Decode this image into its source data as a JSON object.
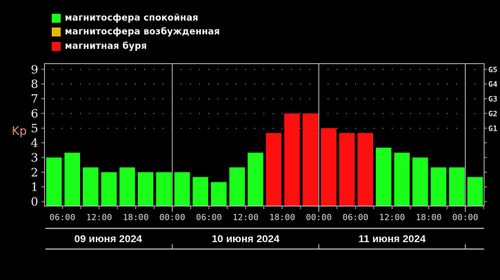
{
  "legend": [
    {
      "label": "магнитосфера спокойная",
      "color": "#1aff1a"
    },
    {
      "label": "магнитосфера возбужденная",
      "color": "#e6b800"
    },
    {
      "label": "магнитная буря",
      "color": "#ff1010"
    }
  ],
  "axis": {
    "y_label": "Kp",
    "y_ticks": [
      "0",
      "1",
      "2",
      "3",
      "4",
      "5",
      "6",
      "7",
      "8",
      "9"
    ],
    "g_ticks": [
      {
        "label": "G1",
        "level": 5
      },
      {
        "label": "G2",
        "level": 6
      },
      {
        "label": "G3",
        "level": 7
      },
      {
        "label": "G4",
        "level": 8
      },
      {
        "label": "G5",
        "level": 9
      }
    ],
    "x_ticks": [
      "06:00",
      "12:00",
      "18:00",
      "00:00",
      "06:00",
      "12:00",
      "18:00",
      "00:00",
      "06:00",
      "12:00",
      "18:00",
      "00:00"
    ],
    "dates": [
      "09 июня 2024",
      "10 июня 2024",
      "11 июня 2024"
    ]
  },
  "chart_data": {
    "type": "bar",
    "title": "",
    "xlabel": "",
    "ylabel": "Kp",
    "ylim": [
      0,
      9
    ],
    "grid": "dotted horizontal at 5-9",
    "legend_position": "top-left",
    "secondary_axis": {
      "G1": 5,
      "G2": 6,
      "G3": 7,
      "G4": 8,
      "G5": 9
    },
    "categories": [
      "09.06 03-06",
      "09.06 06-09",
      "09.06 09-12",
      "09.06 12-15",
      "09.06 15-18",
      "09.06 18-21",
      "09.06 21-24",
      "10.06 00-03",
      "10.06 03-06",
      "10.06 06-09",
      "10.06 09-12",
      "10.06 12-15",
      "10.06 15-18",
      "10.06 18-21",
      "10.06 21-24",
      "11.06 00-03",
      "11.06 03-06",
      "11.06 06-09",
      "11.06 09-12",
      "11.06 12-15",
      "11.06 15-18",
      "11.06 18-21",
      "11.06 21-24",
      "12.06 00-03"
    ],
    "values": [
      3.0,
      3.33,
      2.33,
      2.0,
      2.33,
      2.0,
      2.0,
      2.0,
      1.67,
      1.33,
      2.33,
      3.33,
      4.67,
      6.0,
      6.0,
      5.0,
      4.67,
      4.67,
      3.67,
      3.33,
      3.0,
      2.33,
      2.33,
      1.67
    ],
    "status": [
      "calm",
      "calm",
      "calm",
      "calm",
      "calm",
      "calm",
      "calm",
      "calm",
      "calm",
      "calm",
      "calm",
      "calm",
      "storm",
      "storm",
      "storm",
      "storm",
      "storm",
      "storm",
      "calm",
      "calm",
      "calm",
      "calm",
      "calm",
      "calm"
    ]
  }
}
